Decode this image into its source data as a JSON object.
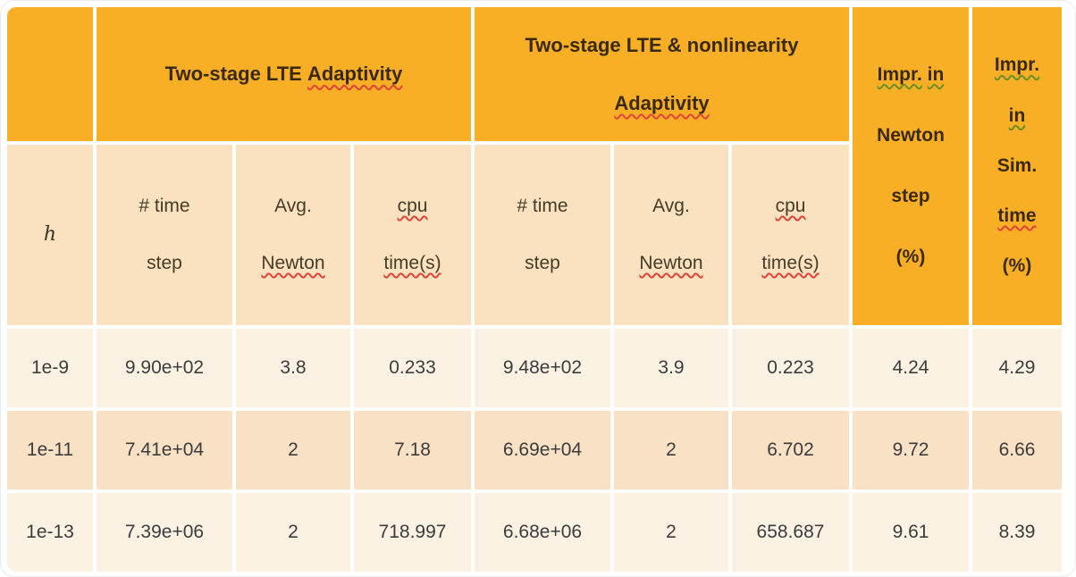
{
  "colors": {
    "orange": "#F8AF25",
    "subheader_bg": "#FAE2C1",
    "row_light": "#FCF2E4",
    "row_mid": "#F9E1C6",
    "header_text": "#3A2A0A",
    "body_text": "#3C3C3C",
    "spell_red": "#E04438",
    "grammar_green": "#6B8E23"
  },
  "table": {
    "top_header": {
      "corner": "",
      "group1": {
        "plain": "Two-stage LTE",
        "flagged": "Adaptivity"
      },
      "group2": {
        "line1": "Two-stage LTE & nonlinearity",
        "line2_flagged": "Adaptivity"
      },
      "impr_newton": {
        "line1a": "Impr.",
        "line1b": "in",
        "line2": "Newton",
        "line3": "step",
        "line4": "(%)"
      },
      "impr_sim": {
        "line1": "Impr.",
        "line2": "in",
        "line3": "Sim.",
        "line4": "time",
        "line5": "(%)"
      }
    },
    "sub_header": {
      "h": "h",
      "time1": "# time",
      "time2": "step",
      "avg1": "Avg.",
      "avg2": "Newton",
      "cpu1": "cpu",
      "cpu2": "time(s)"
    },
    "rows": [
      [
        "1e-9",
        "9.90e+02",
        "3.8",
        "0.233",
        "9.48e+02",
        "3.9",
        "0.223",
        "4.24",
        "4.29"
      ],
      [
        "1e-11",
        "7.41e+04",
        "2",
        "7.18",
        "6.69e+04",
        "2",
        "6.702",
        "9.72",
        "6.66"
      ],
      [
        "1e-13",
        "7.39e+06",
        "2",
        "718.997",
        "6.68e+06",
        "2",
        "658.687",
        "9.61",
        "8.39"
      ]
    ]
  },
  "chart_data": {
    "type": "table",
    "title": "Comparison of two-stage LTE adaptivity vs. two-stage LTE & nonlinearity adaptivity",
    "column_groups": [
      "",
      "Two-stage LTE Adaptivity",
      "Two-stage LTE & nonlinearity Adaptivity",
      "Impr. in Newton step (%)",
      "Impr. in Sim. time (%)"
    ],
    "columns": [
      "h",
      "# time step",
      "Avg. Newton",
      "cpu time(s)",
      "# time step",
      "Avg. Newton",
      "cpu time(s)",
      "Impr. in Newton step (%)",
      "Impr. in Sim. time (%)"
    ],
    "rows": [
      [
        "1e-9",
        "9.90e+02",
        3.8,
        0.233,
        "9.48e+02",
        3.9,
        0.223,
        4.24,
        4.29
      ],
      [
        "1e-11",
        "7.41e+04",
        2,
        7.18,
        "6.69e+04",
        2,
        6.702,
        9.72,
        6.66
      ],
      [
        "1e-13",
        "7.39e+06",
        2,
        718.997,
        "6.68e+06",
        2,
        658.687,
        9.61,
        8.39
      ]
    ]
  }
}
